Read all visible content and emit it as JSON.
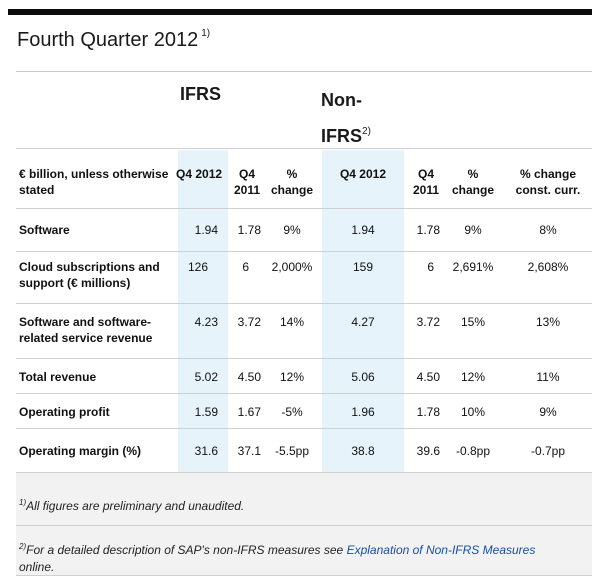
{
  "title": "Fourth Quarter 2012",
  "title_note": "1)",
  "group_headers": {
    "ifrs": "IFRS",
    "nonifrs_line1": "Non-",
    "nonifrs_line2": "IFRS",
    "nonifrs_note": "2)"
  },
  "columns": {
    "label": "€ billion, unless otherwise stated",
    "ifrs_q4_2012": "Q4 2012",
    "ifrs_q4_2011": "Q4 2011",
    "ifrs_pct": "% change",
    "non_q4_2012": "Q4 2012",
    "non_q4_2011": "Q4 2011",
    "non_pct": "% change",
    "non_const": "% change const. curr."
  },
  "rows": [
    {
      "label": "Software",
      "v": [
        "1.94",
        "1.78",
        "9%",
        "1.94",
        "1.78",
        "9%",
        "8%"
      ]
    },
    {
      "label": "Cloud subscriptions and support (€ millions)",
      "v": [
        "126",
        "6",
        "2,000%",
        "159",
        "6",
        "2,691%",
        "2,608%"
      ]
    },
    {
      "label": "Software and software-related service revenue",
      "v": [
        "4.23",
        "3.72",
        "14%",
        "4.27",
        "3.72",
        "15%",
        "13%"
      ]
    },
    {
      "label": "Total revenue",
      "v": [
        "5.02",
        "4.50",
        "12%",
        "5.06",
        "4.50",
        "12%",
        "11%"
      ]
    },
    {
      "label": "Operating profit",
      "v": [
        "1.59",
        "1.67",
        "-5%",
        "1.96",
        "1.78",
        "10%",
        "9%"
      ]
    },
    {
      "label": "Operating margin (%)",
      "v": [
        "31.6",
        "37.1",
        "-5.5pp",
        "38.8",
        "39.6",
        "-0.8pp",
        "-0.7pp"
      ]
    }
  ],
  "footnotes": {
    "fn1_mark": "1)",
    "fn1_text": "All figures are preliminary and unaudited.",
    "fn2_mark": "2)",
    "fn2_text": "For a detailed description of SAP's non-IFRS measures see ",
    "fn2_link": "Explanation of Non-IFRS Measures",
    "fn2_tail": " online."
  },
  "colors": {
    "highlight_column": "#e6f3fa",
    "link": "#1a4fa0",
    "top_bar": "#0c0c0c"
  }
}
